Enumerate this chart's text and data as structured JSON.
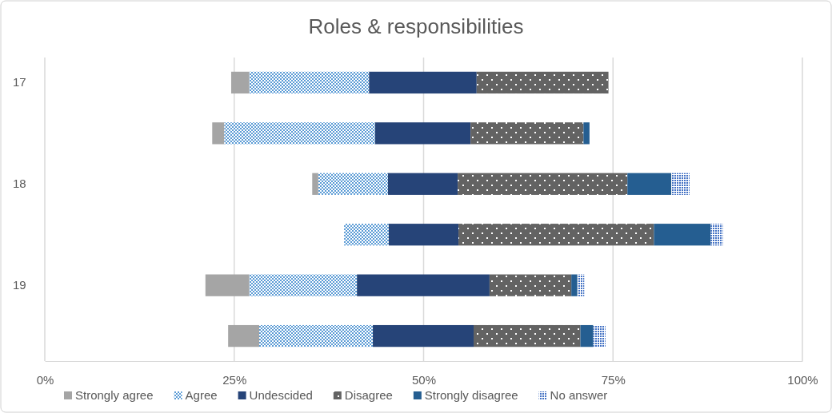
{
  "chart_data": {
    "type": "bar",
    "title": "Roles & responsibilities",
    "orientation": "horizontal",
    "categories": [
      "17",
      null,
      "18",
      null,
      "19",
      null
    ],
    "series": [
      {
        "name": "Strongly agree",
        "color": "#a5a5a5",
        "base": [
          24.6,
          22.1,
          35.3,
          null,
          21.2,
          24.2
        ],
        "values": [
          2.4,
          1.6,
          0.8,
          null,
          5.8,
          4.1
        ]
      },
      {
        "name": "Agree",
        "color": "#5b9bd5",
        "base": [
          27.0,
          23.7,
          36.1,
          39.5,
          27.0,
          28.3
        ],
        "values": [
          15.8,
          19.9,
          9.2,
          5.9,
          14.2,
          15.0
        ]
      },
      {
        "name": "Undescided",
        "color": "#264478",
        "base": [
          42.8,
          43.6,
          45.3,
          45.4,
          41.2,
          43.3
        ],
        "values": [
          14.2,
          12.6,
          9.2,
          9.2,
          17.5,
          13.3
        ]
      },
      {
        "name": "Disagree",
        "color": "#636363",
        "base": [
          57.0,
          56.2,
          54.5,
          54.6,
          58.7,
          56.6
        ],
        "values": [
          17.4,
          14.9,
          22.4,
          25.8,
          10.8,
          14.1
        ]
      },
      {
        "name": "Strongly disagree",
        "color": "#255e91",
        "base": [
          null,
          71.1,
          76.9,
          80.4,
          69.5,
          70.7
        ],
        "values": [
          null,
          0.8,
          5.8,
          7.5,
          0.8,
          1.7
        ]
      },
      {
        "name": "No answer",
        "color": "#4472c4",
        "base": [
          null,
          null,
          82.7,
          87.9,
          70.3,
          72.4
        ],
        "values": [
          null,
          null,
          2.4,
          1.6,
          0.9,
          1.6
        ]
      }
    ],
    "xlim": [
      0,
      100
    ],
    "xticks": [
      {
        "value": 0,
        "label": "0%"
      },
      {
        "value": 25,
        "label": "25%"
      },
      {
        "value": 50,
        "label": "50%"
      },
      {
        "value": 75,
        "label": "75%"
      },
      {
        "value": 100,
        "label": "100%"
      }
    ],
    "grid": "x",
    "legend": "bottom"
  }
}
